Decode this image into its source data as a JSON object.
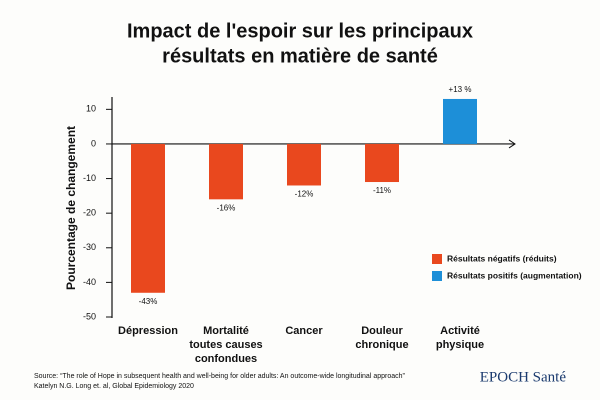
{
  "chart_data": {
    "type": "bar",
    "title": [
      "Impact de l'espoir sur les principaux",
      "résultats en matière de santé"
    ],
    "ylabel": "Pourcentage de changement",
    "categories": [
      [
        "Dépression"
      ],
      [
        "Mortalité",
        "toutes causes",
        "confondues"
      ],
      [
        "Cancer"
      ],
      [
        "Douleur",
        "chronique"
      ],
      [
        "Activité",
        "physique"
      ]
    ],
    "values": [
      -43,
      -16,
      -12,
      -11,
      13
    ],
    "value_labels": [
      "-43%",
      "-16%",
      "-12%",
      "-11%",
      "+13 %"
    ],
    "colors": [
      "#e9481e",
      "#e9481e",
      "#e9481e",
      "#e9481e",
      "#1d8fd8"
    ],
    "legend": [
      {
        "name": "Résultats négatifs (réduits)",
        "color": "#e9481e"
      },
      {
        "name": "Résultats positifs (augmentation)",
        "color": "#1d8fd8"
      }
    ],
    "ylim": [
      -50,
      14
    ],
    "yticks": [
      10,
      0,
      -10,
      -20,
      -30,
      -40,
      -50
    ],
    "grid": false,
    "source": [
      "Source: “The role of Hope in subsequent health and well-being for older adults: An outcome-wide longitudinal approach”",
      "Katelyn N.G. Long et. al, Global Epidemiology 2020"
    ],
    "logo": "EPOCH Santé"
  }
}
